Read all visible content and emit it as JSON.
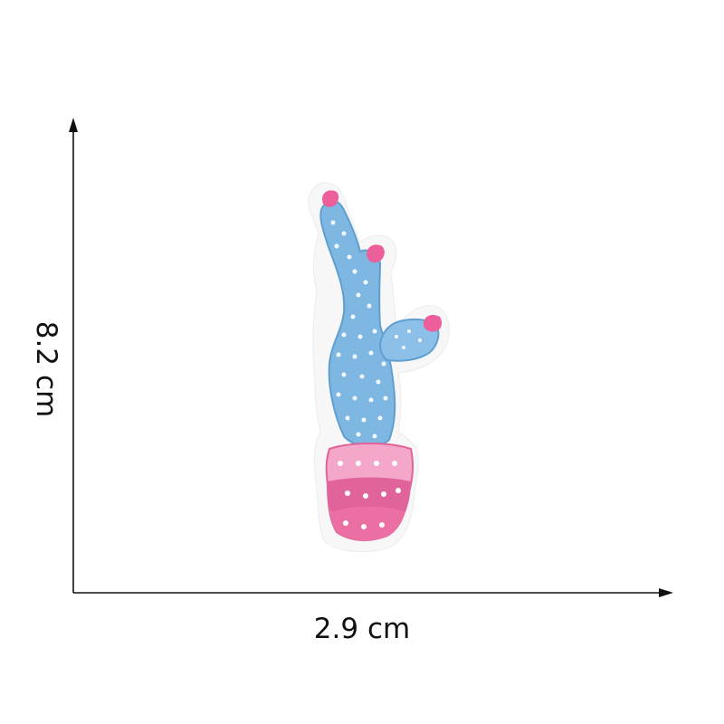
{
  "measurements": {
    "height": "8.2 cm",
    "width": "2.9 cm"
  },
  "colors": {
    "background": "#ffffff",
    "axis": "#111111",
    "backing": "#f7f7f7",
    "cactus": "#7fb7e3",
    "cactus_dark": "#5f9fd0",
    "flower": "#ec5f9a",
    "pot": "#f4a7c8",
    "pot_dark": "#e0649a"
  },
  "icons": [
    "axis-arrow-up",
    "axis-arrow-right",
    "embroidered-cactus-patch"
  ]
}
